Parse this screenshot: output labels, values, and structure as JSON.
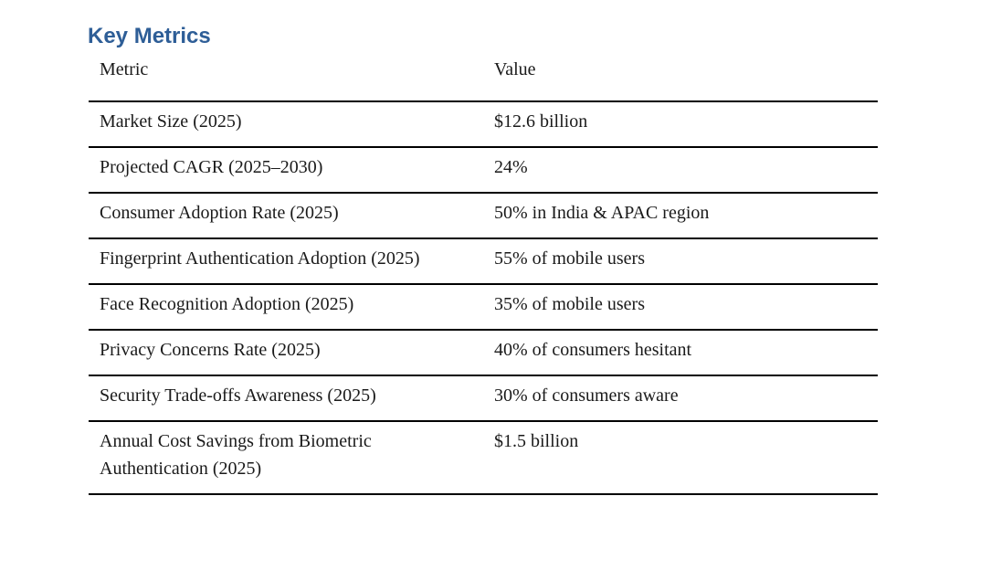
{
  "page": {
    "background": "#ffffff"
  },
  "title": {
    "text": "Key Metrics",
    "color": "#2E5E97"
  },
  "table": {
    "border_color": "#000000",
    "text_color": "#1a1a1a",
    "columns": [
      "Metric",
      "Value"
    ],
    "rows": [
      {
        "metric": "Market Size (2025)",
        "value": "$12.6 billion"
      },
      {
        "metric": "Projected CAGR (2025–2030)",
        "value": "24%"
      },
      {
        "metric": "Consumer Adoption Rate (2025)",
        "value": "50% in India & APAC region"
      },
      {
        "metric": "Fingerprint Authentication Adoption (2025)",
        "value": "55% of mobile users"
      },
      {
        "metric": "Face Recognition Adoption (2025)",
        "value": "35% of mobile users"
      },
      {
        "metric": "Privacy Concerns Rate (2025)",
        "value": "40% of consumers hesitant"
      },
      {
        "metric": "Security Trade-offs Awareness (2025)",
        "value": "30% of consumers aware"
      },
      {
        "metric": "Annual Cost Savings from Biometric Authentication (2025)",
        "value": "$1.5 billion"
      }
    ]
  }
}
